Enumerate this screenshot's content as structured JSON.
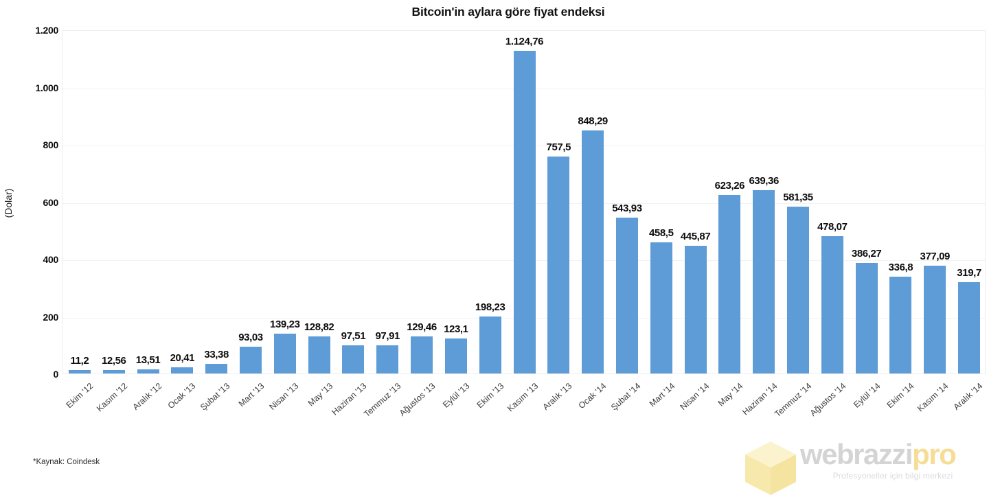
{
  "title": "Bitcoin'in aylara göre fiyat endeksi",
  "source_note": "*Kaynak: Coindesk",
  "watermark": {
    "brand": "webrazzi",
    "brand_suffix": "pro",
    "tagline": "Profesyoneller için bilgi merkezi",
    "cube_icon": "cube-icon"
  },
  "colors": {
    "bar": "#5E9CD8",
    "gridline": "#f2f2f2",
    "plot_border": "#ededed",
    "title_text": "#111111",
    "value_label_text": "#0d0d0d",
    "x_tick_text": "#3d3d3d",
    "watermark_gray": "#d4d4d4",
    "watermark_yellow": "#f5dd96",
    "cube_top": "#fbf3ce",
    "cube_left": "#f7e8ac",
    "cube_right": "#f5e3a0"
  },
  "chart_data": {
    "type": "bar",
    "title": "Bitcoin'in aylara göre fiyat endeksi",
    "xlabel": "",
    "ylabel": "(Dolar)",
    "ylim": [
      0,
      1200
    ],
    "grid": true,
    "legend": false,
    "bar_color": "#5E9CD8",
    "yticks": [
      0,
      200,
      400,
      600,
      800,
      1000,
      1200
    ],
    "ytick_labels": [
      "0",
      "200",
      "400",
      "600",
      "800",
      "1.000",
      "1.200"
    ],
    "categories": [
      "Ekim '12",
      "Kasım '12",
      "Aralık '12",
      "Ocak '13",
      "Şubat '13",
      "Mart '13",
      "Nisan '13",
      "May '13",
      "Haziran '13",
      "Temmuz '13",
      "Ağustos '13",
      "Eylül '13",
      "Ekim '13",
      "Kasım '13",
      "Aralık '13",
      "Ocak '14",
      "Şubat '14",
      "Mart '14",
      "Nisan '14",
      "May '14",
      "Haziran '14",
      "Temmuz '14",
      "Ağustos '14",
      "Eylül '14",
      "Ekim '14",
      "Kasım '14",
      "Aralık '14"
    ],
    "values": [
      11.2,
      12.56,
      13.51,
      20.41,
      33.38,
      93.03,
      139.23,
      128.82,
      97.51,
      97.91,
      129.46,
      123.1,
      198.23,
      1124.76,
      757.5,
      848.29,
      543.93,
      458.5,
      445.87,
      623.26,
      639.36,
      581.35,
      478.07,
      386.27,
      336.8,
      377.09,
      319.7
    ],
    "value_labels": [
      "11,2",
      "12,56",
      "13,51",
      "20,41",
      "33,38",
      "93,03",
      "139,23",
      "128,82",
      "97,51",
      "97,91",
      "129,46",
      "123,1",
      "198,23",
      "1.124,76",
      "757,5",
      "848,29",
      "543,93",
      "458,5",
      "445,87",
      "623,26",
      "639,36",
      "581,35",
      "478,07",
      "386,27",
      "336,8",
      "377,09",
      "319,7"
    ]
  }
}
